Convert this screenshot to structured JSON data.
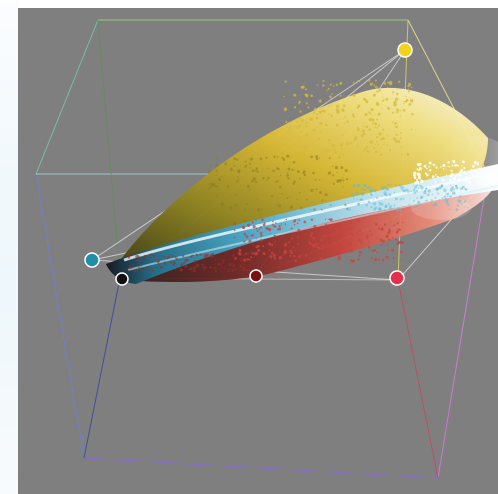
{
  "canvas": {
    "background": "#808080"
  },
  "color_cube": {
    "edges": [
      {
        "name": "white-to-yellow",
        "from": "#ffffff",
        "to": "#ffff66"
      },
      {
        "name": "green-to-yellow",
        "from": "#66cc66",
        "to": "#ffff66"
      },
      {
        "name": "white-to-magenta",
        "from": "#ffffff",
        "to": "#dd66dd"
      },
      {
        "name": "blue-to-magenta",
        "from": "#5555dd",
        "to": "#dd66dd"
      },
      {
        "name": "cyan-to-white",
        "from": "#66cccc",
        "to": "#ffffff"
      },
      {
        "name": "cyan-to-green",
        "from": "#66cccc",
        "to": "#66cc66"
      },
      {
        "name": "cyan-to-blue",
        "from": "#66cccc",
        "to": "#5555dd"
      },
      {
        "name": "black-to-green",
        "from": "#222222",
        "to": "#66cc66"
      },
      {
        "name": "black-to-blue",
        "from": "#222222",
        "to": "#5555dd"
      },
      {
        "name": "red-to-magenta",
        "from": "#cc3344",
        "to": "#dd66dd"
      },
      {
        "name": "red-to-yellow",
        "from": "#cc3344",
        "to": "#ffff66"
      },
      {
        "name": "black-to-red",
        "from": "#222222",
        "to": "#cc3344"
      }
    ]
  },
  "palette_handles": [
    {
      "name": "handle-yellow",
      "color": "#f2d21b"
    },
    {
      "name": "handle-cyan",
      "color": "#1f8fa9"
    },
    {
      "name": "handle-black",
      "color": "#111111"
    },
    {
      "name": "handle-dark-red",
      "color": "#7a1111"
    },
    {
      "name": "handle-red",
      "color": "#e3314b"
    }
  ],
  "point_cloud": {
    "yellow_lobe": "#d6ba3a",
    "cyan_streak": "#5dbcd6",
    "red_lobe": "#c8453e",
    "highlight": "#ffffff"
  }
}
